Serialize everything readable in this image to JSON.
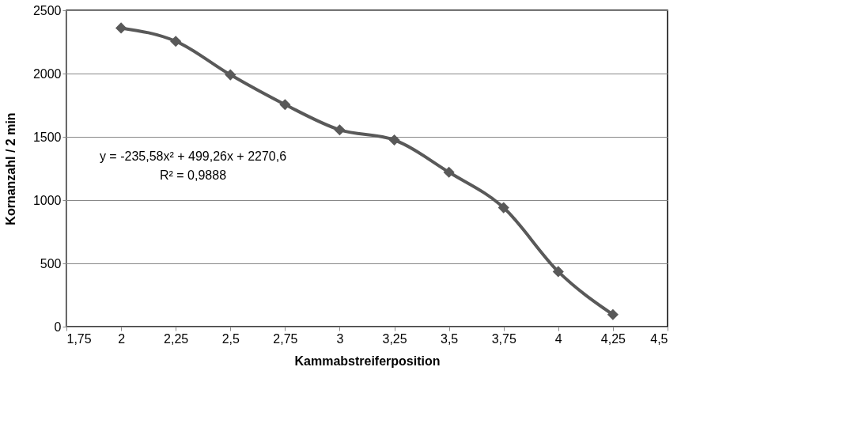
{
  "chart_data": {
    "type": "line",
    "xlabel": "Kammabstreiferposition",
    "ylabel": "Kornanzahl / 2 min",
    "x": [
      2,
      2.25,
      2.5,
      2.75,
      3,
      3.25,
      3.5,
      3.75,
      4,
      4.25
    ],
    "series": [
      {
        "color": "#595959",
        "values": [
          2360,
          2255,
          1990,
          1755,
          1555,
          1475,
          1220,
          940,
          435,
          95
        ]
      }
    ],
    "xlim": [
      1.75,
      4.5
    ],
    "xticks": [
      {
        "value": 1.75,
        "label": "1,75"
      },
      2,
      {
        "value": 2.25,
        "label": "2,25"
      },
      {
        "value": 2.5,
        "label": "2,5"
      },
      {
        "value": 2.75,
        "label": "2,75"
      },
      3,
      {
        "value": 3.25,
        "label": "3,25"
      },
      {
        "value": 3.5,
        "label": "3,5"
      },
      {
        "value": 3.75,
        "label": "3,75"
      },
      4,
      {
        "value": 4.25,
        "label": "4,25"
      },
      {
        "value": 4.5,
        "label": "4,5"
      }
    ],
    "ylim": [
      0,
      2500
    ],
    "yticks": [
      0,
      500,
      1000,
      1500,
      2000,
      2500
    ],
    "grid": "y",
    "marker": "diamond",
    "line_style": "solid",
    "annotations": [
      "y = -235,58x² + 499,26x + 2270,6",
      "R² = 0,9888"
    ]
  }
}
